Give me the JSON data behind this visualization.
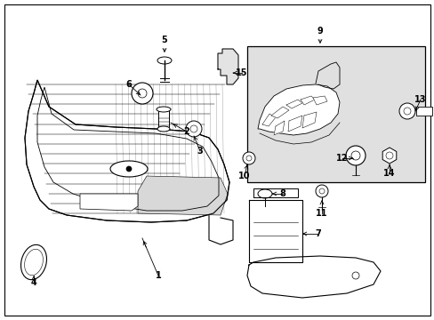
{
  "background_color": "#ffffff",
  "line_color": "#000000",
  "text_color": "#000000",
  "fig_width": 4.89,
  "fig_height": 3.6,
  "dpi": 100,
  "gray_fill": "#d8d8d8",
  "light_gray": "#e8e8e8",
  "inset_bg": "#e0e0e0"
}
